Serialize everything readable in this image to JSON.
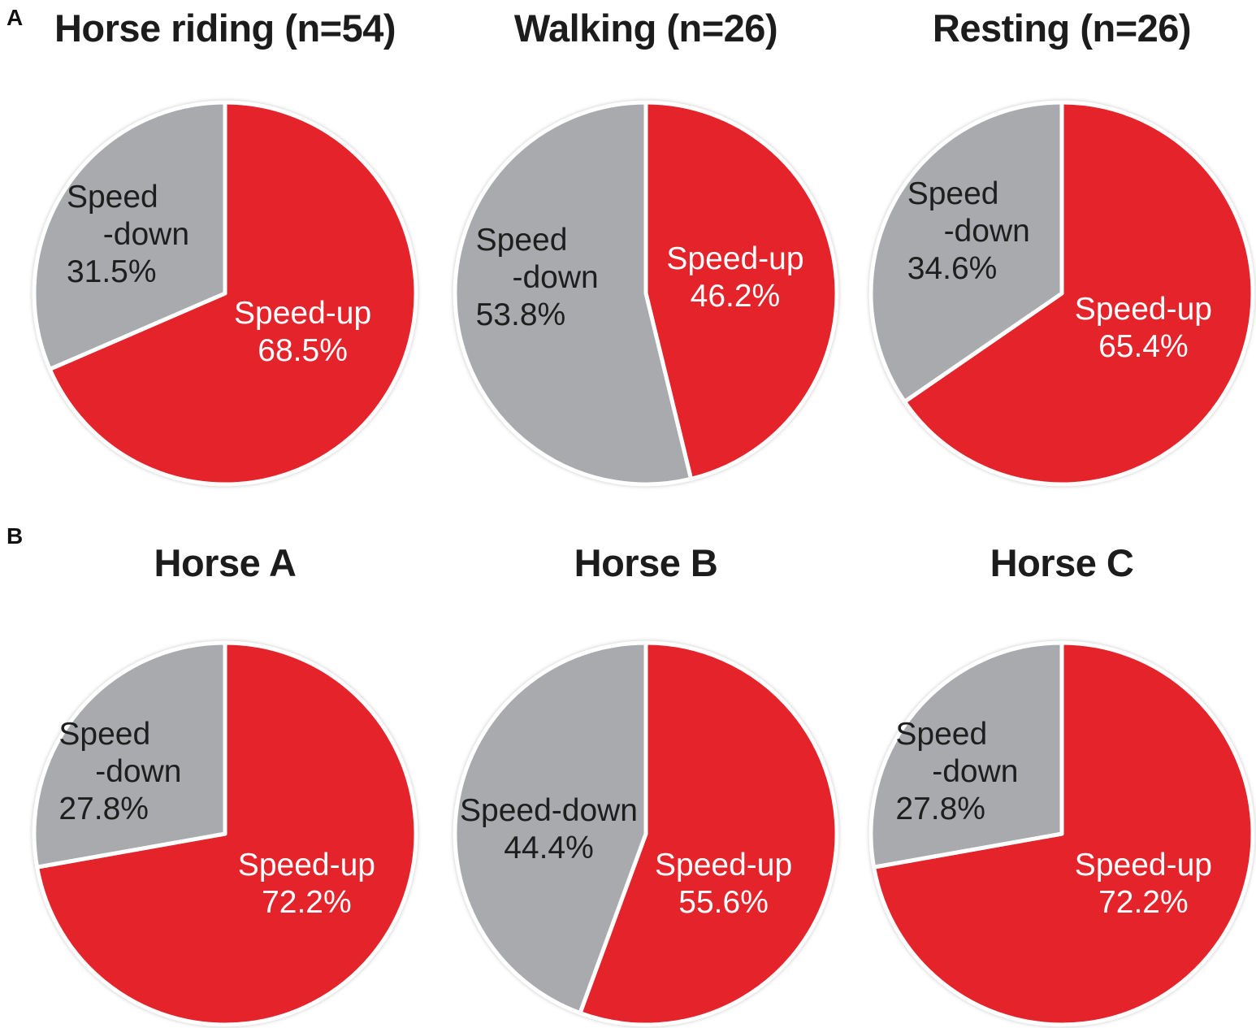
{
  "figure": {
    "panel_a_label": "A",
    "panel_b_label": "B"
  },
  "colors": {
    "speed_up": "#e4232b",
    "speed_down": "#a8aaad",
    "up_text": "#ffffff",
    "down_text": "#1e1e1e",
    "slice_gap": "#ffffff",
    "outer_ring": "#e3e3e3"
  },
  "chart_data": [
    {
      "type": "pie",
      "panel": "A",
      "title": "Horse riding (n=54)",
      "start_angle_deg": 0,
      "direction": "clockwise",
      "slices": [
        {
          "label": "Speed-up",
          "value_pct": 68.5,
          "pct_label": "68.5%",
          "color": "#e4232b"
        },
        {
          "label": "Speed-down",
          "value_pct": 31.5,
          "pct_label": "31.5%",
          "color": "#a8aaad"
        }
      ],
      "down_label_lines": [
        "Speed",
        "-down",
        "31.5%"
      ]
    },
    {
      "type": "pie",
      "panel": "A",
      "title": "Walking (n=26)",
      "start_angle_deg": 0,
      "direction": "clockwise",
      "slices": [
        {
          "label": "Speed-up",
          "value_pct": 46.2,
          "pct_label": "46.2%",
          "color": "#e4232b"
        },
        {
          "label": "Speed-down",
          "value_pct": 53.8,
          "pct_label": "53.8%",
          "color": "#a8aaad"
        }
      ],
      "down_label_lines": [
        "Speed",
        "-down",
        "53.8%"
      ]
    },
    {
      "type": "pie",
      "panel": "A",
      "title": "Resting (n=26)",
      "start_angle_deg": 0,
      "direction": "clockwise",
      "slices": [
        {
          "label": "Speed-up",
          "value_pct": 65.4,
          "pct_label": "65.4%",
          "color": "#e4232b"
        },
        {
          "label": "Speed-down",
          "value_pct": 34.6,
          "pct_label": "34.6%",
          "color": "#a8aaad"
        }
      ],
      "down_label_lines": [
        "Speed",
        "-down",
        "34.6%"
      ]
    },
    {
      "type": "pie",
      "panel": "B",
      "title": "Horse A",
      "start_angle_deg": 0,
      "direction": "clockwise",
      "slices": [
        {
          "label": "Speed-up",
          "value_pct": 72.2,
          "pct_label": "72.2%",
          "color": "#e4232b"
        },
        {
          "label": "Speed-down",
          "value_pct": 27.8,
          "pct_label": "27.8%",
          "color": "#a8aaad"
        }
      ],
      "down_label_lines": [
        "Speed",
        "-down",
        "27.8%"
      ]
    },
    {
      "type": "pie",
      "panel": "B",
      "title": "Horse B",
      "start_angle_deg": 0,
      "direction": "clockwise",
      "slices": [
        {
          "label": "Speed-up",
          "value_pct": 55.6,
          "pct_label": "55.6%",
          "color": "#e4232b"
        },
        {
          "label": "Speed-down",
          "value_pct": 44.4,
          "pct_label": "44.4%",
          "color": "#a8aaad"
        }
      ],
      "down_label_lines": [
        "Speed-down",
        "44.4%"
      ]
    },
    {
      "type": "pie",
      "panel": "B",
      "title": "Horse C",
      "start_angle_deg": 0,
      "direction": "clockwise",
      "slices": [
        {
          "label": "Speed-up",
          "value_pct": 72.2,
          "pct_label": "72.2%",
          "color": "#e4232b"
        },
        {
          "label": "Speed-down",
          "value_pct": 27.8,
          "pct_label": "27.8%",
          "color": "#a8aaad"
        }
      ],
      "down_label_lines": [
        "Speed",
        "-down",
        "27.8%"
      ]
    }
  ]
}
